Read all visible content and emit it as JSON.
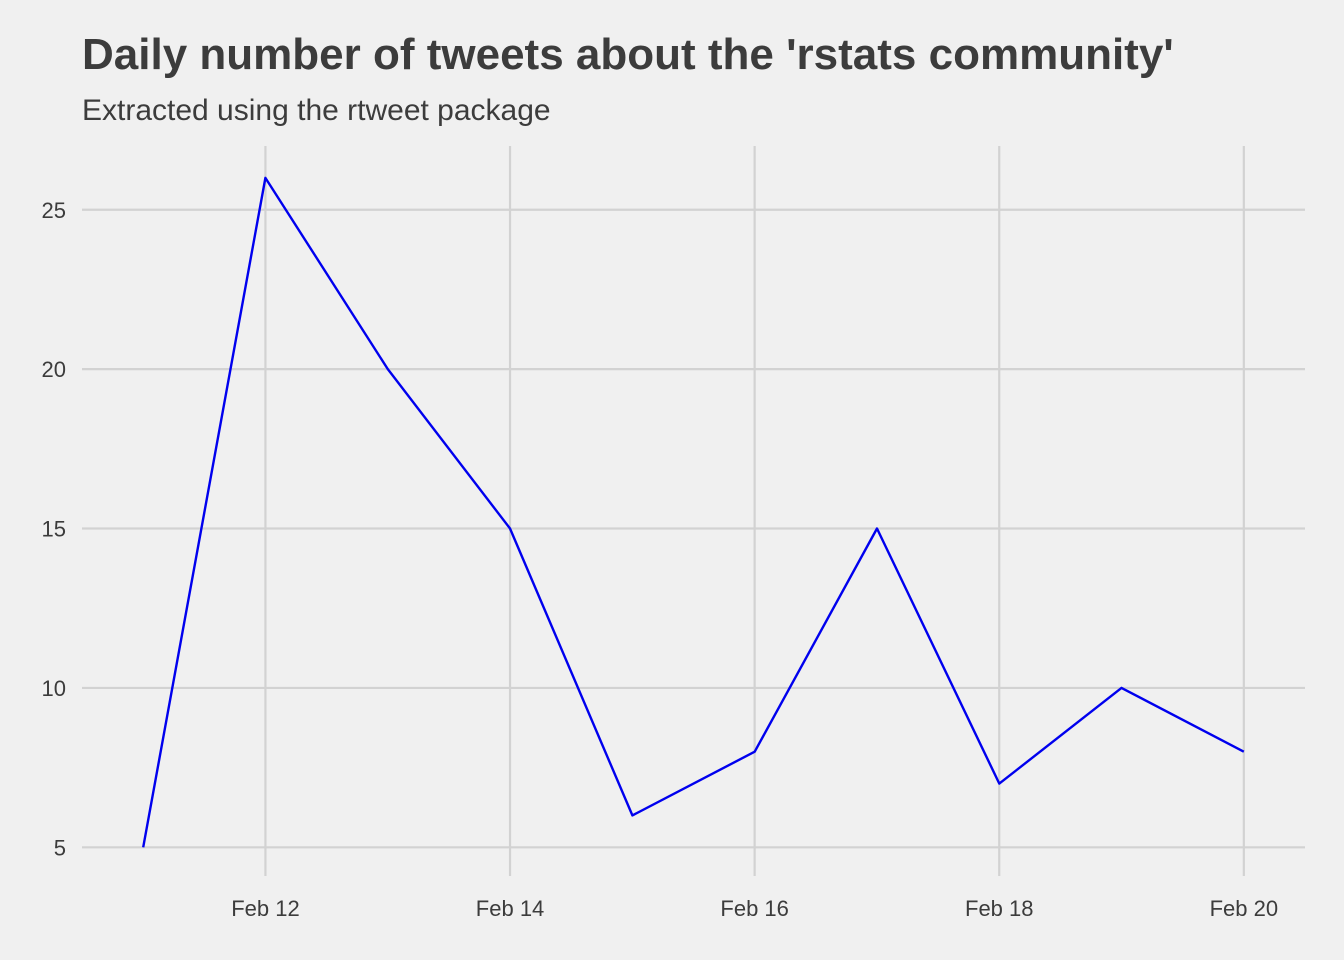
{
  "chart_data": {
    "type": "line",
    "title": "Daily number of tweets about the 'rstats community'",
    "subtitle": "Extracted using the rtweet package",
    "xlabel": "",
    "ylabel": "",
    "x": [
      "2019-02-11",
      "2019-02-12",
      "2019-02-13",
      "2019-02-14",
      "2019-02-15",
      "2019-02-16",
      "2019-02-17",
      "2019-02-18",
      "2019-02-19",
      "2019-02-20"
    ],
    "series": [
      {
        "values": [
          5,
          26,
          20,
          15,
          6,
          8,
          15,
          7,
          10,
          8
        ]
      }
    ],
    "xticks": [
      {
        "date": "2019-02-12",
        "label": "Feb 12"
      },
      {
        "date": "2019-02-14",
        "label": "Feb 14"
      },
      {
        "date": "2019-02-16",
        "label": "Feb 16"
      },
      {
        "date": "2019-02-18",
        "label": "Feb 18"
      },
      {
        "date": "2019-02-20",
        "label": "Feb 20"
      }
    ],
    "yticks": [
      5,
      10,
      15,
      20,
      25
    ],
    "ylim": [
      4.1,
      27
    ],
    "xlim": [
      "2019-02-10T12:00:00",
      "2019-02-20T12:00:00"
    ],
    "grid": true,
    "legend": "none",
    "colors": {
      "background": "#f0f0f0",
      "grid": "#d2d2d2",
      "line": "#0000ee",
      "text": "#3c3c3c"
    }
  }
}
